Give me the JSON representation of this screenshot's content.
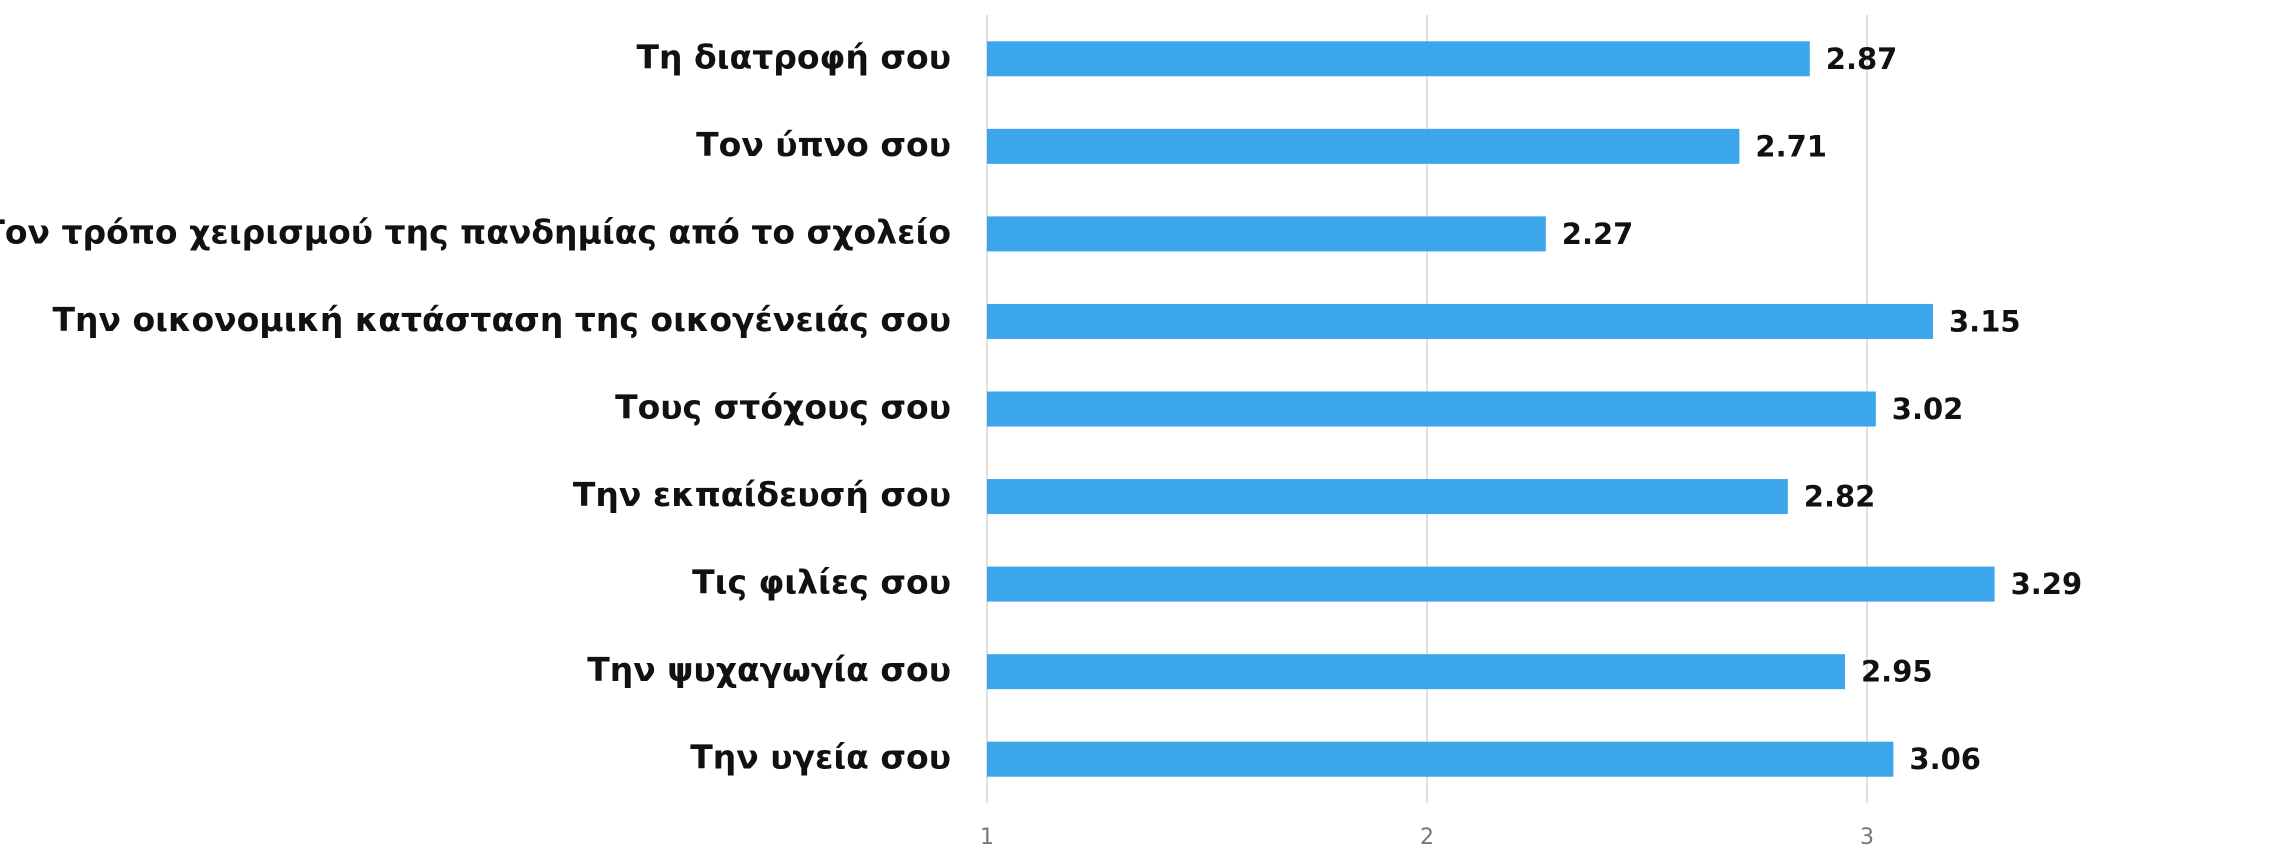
{
  "chart_data": {
    "type": "barh",
    "categories": [
      "Τη διατροφή σου",
      "Τον ύπνο σου",
      "Τον τρόπο χειρισμού της πανδημίας από το σχολείο",
      "Την οικονομική κατάσταση της οικογένειάς σου",
      "Τους στόχους σου",
      "Την εκπαίδευσή σου",
      "Τις φιλίες σου",
      "Την ψυχαγωγία σου",
      "Την υγεία σου"
    ],
    "values": [
      2.87,
      2.71,
      2.27,
      3.15,
      3.02,
      2.82,
      3.29,
      2.95,
      3.06
    ],
    "color": "#3ba6e9",
    "xlim": [
      1,
      3.9
    ],
    "xticks": [
      1,
      2,
      3
    ],
    "grid": true
  }
}
